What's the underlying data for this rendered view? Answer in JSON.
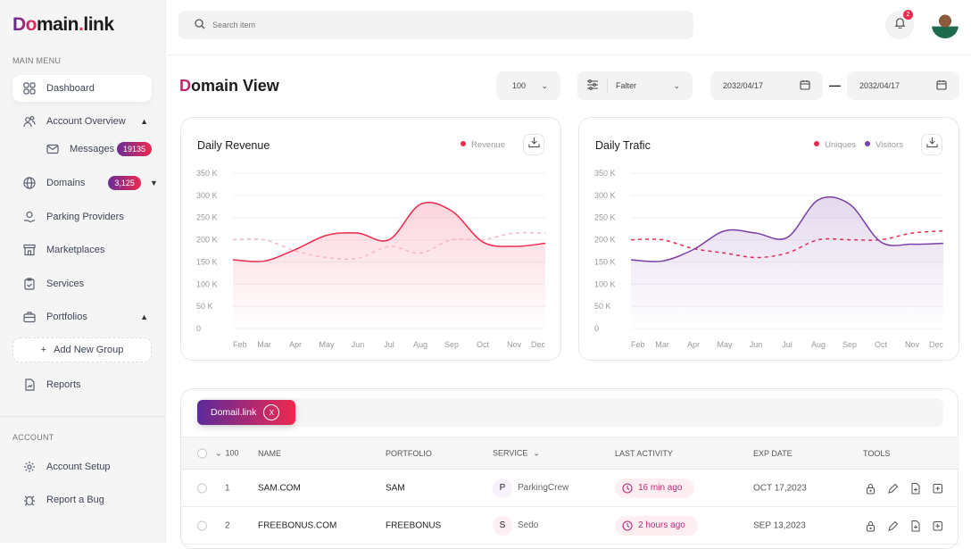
{
  "brand": {
    "logo_a": "Do",
    "logo_b": "main",
    "logo_dot": ".",
    "logo_c": "link"
  },
  "sidebar": {
    "main_menu_label": "MAIN MENU",
    "items": [
      {
        "label": "Dashboard",
        "icon": "grid-icon"
      },
      {
        "label": "Account Overview",
        "icon": "users-icon"
      },
      {
        "label": "Messages",
        "icon": "mail-icon",
        "badge": "19135"
      },
      {
        "label": "Domains",
        "icon": "globe-icon",
        "badge": "3,125"
      },
      {
        "label": "Parking Providers",
        "icon": "provider-icon"
      },
      {
        "label": "Marketplaces",
        "icon": "store-icon"
      },
      {
        "label": "Services",
        "icon": "clipboard-icon"
      },
      {
        "label": "Portfolios",
        "icon": "briefcase-icon"
      }
    ],
    "add_group": "Add New Group",
    "reports": "Reports",
    "account_label": "ACCOUNT",
    "account_items": [
      {
        "label": "Account Setup",
        "icon": "gear-icon"
      },
      {
        "label": "Report a Bug",
        "icon": "bug-icon"
      }
    ]
  },
  "header": {
    "search_placeholder": "Search item",
    "notifications": "2"
  },
  "page": {
    "title_first": "D",
    "title_rest": "omain View",
    "count_select": "100",
    "filter_label": "Falter",
    "date_from": "2032/04/17",
    "date_sep": "—",
    "date_to": "2032/04/17"
  },
  "chart_data": [
    {
      "type": "area",
      "title": "Daily Revenue",
      "categories": [
        "Feb",
        "Mar",
        "Apr",
        "May",
        "Jun",
        "Jul",
        "Aug",
        "Sep",
        "Oct",
        "Nov",
        "Dec"
      ],
      "y_ticks": [
        "350 K",
        "300 K",
        "250 K",
        "200 K",
        "150 K",
        "100 K",
        "50 K",
        "0"
      ],
      "ylim": [
        0,
        350
      ],
      "series": [
        {
          "name": "Revenue",
          "values": [
            155,
            152,
            178,
            210,
            215,
            200,
            280,
            265,
            195,
            185,
            192
          ],
          "color": "#ee2a4f",
          "style": "solid"
        },
        {
          "values": [
            200,
            200,
            175,
            160,
            158,
            185,
            170,
            200,
            200,
            215,
            215
          ],
          "color": "#f7b7c3",
          "style": "dashed"
        }
      ],
      "legend": "top-right"
    },
    {
      "type": "area",
      "title": "Daily Trafic",
      "categories": [
        "Feb",
        "Mar",
        "Apr",
        "May",
        "Jun",
        "Jul",
        "Aug",
        "Sep",
        "Oct",
        "Nov",
        "Dec"
      ],
      "y_ticks": [
        "350 K",
        "300 K",
        "250 K",
        "200 K",
        "150 K",
        "100 K",
        "50 K",
        "0"
      ],
      "ylim": [
        0,
        350
      ],
      "series": [
        {
          "name": "Uniques",
          "values": [
            200,
            200,
            180,
            170,
            160,
            170,
            200,
            200,
            200,
            215,
            220
          ],
          "color": "#ee2a4f",
          "style": "dashed"
        },
        {
          "name": "Visitors",
          "values": [
            155,
            152,
            178,
            220,
            215,
            205,
            290,
            280,
            195,
            190,
            192
          ],
          "color": "#7a3ea8",
          "style": "solid"
        }
      ],
      "legend": "top-right"
    }
  ],
  "table": {
    "chip": "Domail.link",
    "chip_close": "X",
    "headers": {
      "count": "100",
      "name": "NAME",
      "portfolio": "PORTFOLIO",
      "service": "SERVICE",
      "activity": "LAST ACTIVITY",
      "exp": "EXP DATE",
      "tools": "TOOLS"
    },
    "rows": [
      {
        "n": "1",
        "name": "SAM.COM",
        "portfolio": "SAM",
        "service_initial": "P",
        "service": "ParkingCrew",
        "activity": "16 min ago",
        "exp": "OCT 17,2023"
      },
      {
        "n": "2",
        "name": "FREEBONUS.COM",
        "portfolio": "FREEBONUS",
        "service_initial": "S",
        "service": "Sedo",
        "activity": "2 hours ago",
        "exp": "SEP 13,2023"
      }
    ]
  }
}
